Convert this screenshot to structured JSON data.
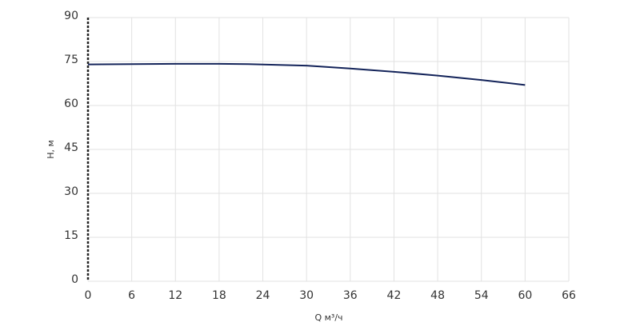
{
  "chart_data": {
    "type": "line",
    "x_label": "Q м³/ч",
    "y_label": "H, м",
    "x": [
      0,
      6,
      12,
      18,
      22,
      30,
      36,
      42,
      48,
      54,
      60
    ],
    "series": [
      {
        "color": "#14245a",
        "values": [
          74,
          74.1,
          74.2,
          74.2,
          74.1,
          73.6,
          72.6,
          71.5,
          70.2,
          68.7,
          67
        ]
      }
    ],
    "xlim": [
      0,
      66
    ],
    "xticks": [
      0,
      6,
      12,
      18,
      24,
      30,
      36,
      42,
      48,
      54,
      60,
      66
    ],
    "ylim": [
      0,
      90
    ],
    "yticks": [
      0,
      15,
      30,
      45,
      60,
      75,
      90
    ],
    "grid": true
  }
}
